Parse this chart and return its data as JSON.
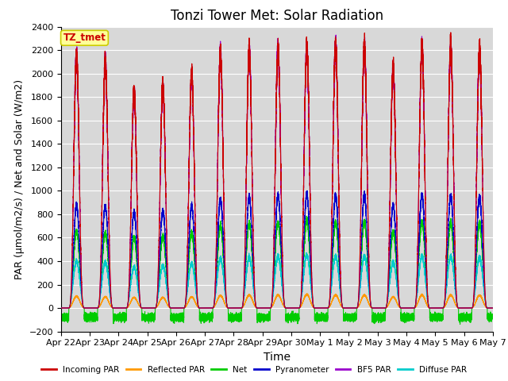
{
  "title": "Tonzi Tower Met: Solar Radiation",
  "ylabel": "PAR (μmol/m2/s) / Net and Solar (W/m2)",
  "xlabel": "Time",
  "ylim": [
    -200,
    2400
  ],
  "xlim": [
    0,
    15
  ],
  "x_tick_labels": [
    "Apr 22",
    "Apr 23",
    "Apr 24",
    "Apr 25",
    "Apr 26",
    "Apr 27",
    "Apr 28",
    "Apr 29",
    "Apr 30",
    "May 1",
    "May 2",
    "May 3",
    "May 4",
    "May 5",
    "May 6",
    "May 7"
  ],
  "timezone_label": "TZ_tmet",
  "series": {
    "incoming_par": {
      "color": "#cc0000",
      "label": "Incoming PAR"
    },
    "reflected_par": {
      "color": "#ff9900",
      "label": "Reflected PAR"
    },
    "net": {
      "color": "#00cc00",
      "label": "Net"
    },
    "pyranometer": {
      "color": "#0000cc",
      "label": "Pyranometer"
    },
    "bf5_par": {
      "color": "#9900cc",
      "label": "BF5 PAR"
    },
    "diffuse_par": {
      "color": "#00cccc",
      "label": "Diffuse PAR"
    }
  },
  "background_color": "#ffffff",
  "plot_bg_color": "#d8d8d8",
  "grid_color": "#ffffff",
  "title_fontsize": 12,
  "label_fontsize": 9,
  "tick_fontsize": 8,
  "peaks_incoming": [
    2160,
    2100,
    1850,
    1900,
    2000,
    2180,
    2200,
    2210,
    2230,
    2240,
    2230,
    2040,
    2230,
    2230,
    2200
  ],
  "peaks_bf5": [
    2140,
    2080,
    1830,
    1880,
    1980,
    2170,
    2195,
    2205,
    2220,
    2230,
    2220,
    2030,
    2220,
    2220,
    2190
  ],
  "peaks_pyrano": [
    880,
    870,
    820,
    830,
    870,
    930,
    950,
    960,
    970,
    960,
    960,
    880,
    960,
    960,
    950
  ],
  "peaks_net": [
    650,
    640,
    600,
    610,
    640,
    700,
    720,
    730,
    740,
    730,
    730,
    650,
    730,
    730,
    720
  ],
  "peaks_diffuse": [
    400,
    390,
    350,
    360,
    380,
    420,
    430,
    440,
    450,
    440,
    440,
    390,
    440,
    440,
    430
  ],
  "peaks_reflected": [
    100,
    95,
    90,
    90,
    95,
    105,
    110,
    110,
    115,
    110,
    110,
    95,
    110,
    110,
    108
  ],
  "night_net": -80,
  "day_start": 0.27,
  "day_end": 0.81
}
